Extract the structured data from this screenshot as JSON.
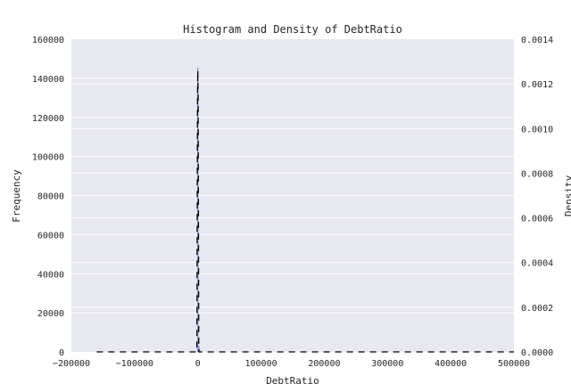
{
  "chart_data": {
    "type": "bar",
    "title": "Histogram and Density of DebtRatio",
    "xlabel": "DebtRatio",
    "ylabel": "Frequency",
    "y2label": "Density",
    "xlim": [
      -200000,
      500000
    ],
    "ylim": [
      0,
      160000
    ],
    "y2lim": [
      0,
      0.0014
    ],
    "grid": true,
    "xticks": [
      -200000,
      -100000,
      0,
      100000,
      200000,
      300000,
      400000,
      500000
    ],
    "xtick_labels": [
      "−200000",
      "−100000",
      "0",
      "100000",
      "200000",
      "300000",
      "400000",
      "500000"
    ],
    "yticks": [
      0,
      20000,
      40000,
      60000,
      80000,
      100000,
      120000,
      140000,
      160000
    ],
    "ytick_labels": [
      "0",
      "20000",
      "40000",
      "60000",
      "80000",
      "100000",
      "120000",
      "140000",
      "160000"
    ],
    "y2ticks": [
      0,
      0.0002,
      0.0004,
      0.0006,
      0.0008,
      0.001,
      0.0012,
      0.0014
    ],
    "y2tick_labels": [
      "0.0000",
      "0.0002",
      "0.0004",
      "0.0006",
      "0.0008",
      "0.0010",
      "0.0012",
      "0.0014"
    ],
    "histogram": {
      "name": "Frequency",
      "color": "#7b7fd6",
      "bins": [
        {
          "x0": -1000,
          "x1": 1000,
          "count": 145500
        },
        {
          "x0": 1000,
          "x1": 3000,
          "count": 3000
        },
        {
          "x0": 3000,
          "x1": 5000,
          "count": 700
        }
      ]
    },
    "density": {
      "name": "Density",
      "color": "#000000",
      "style": "dashed",
      "x": [
        -160000,
        -1500,
        -500,
        0,
        500,
        1500,
        500000
      ],
      "y": [
        0.0,
        0.0,
        0.00115,
        0.00126,
        0.00115,
        0.0,
        0.0
      ]
    },
    "colors": {
      "plot_bg": "#e8e8f1",
      "grid": "#ffffff",
      "text": "#262626"
    }
  }
}
